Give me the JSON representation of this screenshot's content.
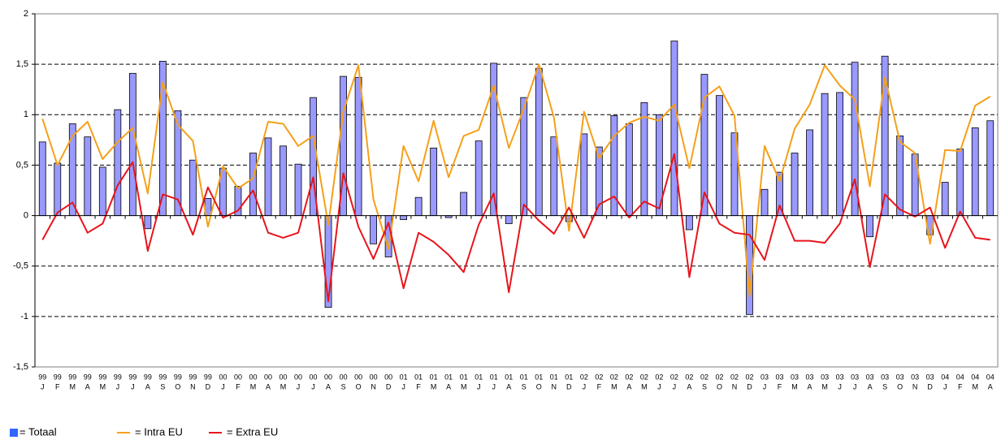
{
  "chart_data": {
    "type": "bar",
    "categories": [
      [
        "99",
        "J"
      ],
      [
        "99",
        "F"
      ],
      [
        "99",
        "M"
      ],
      [
        "99",
        "A"
      ],
      [
        "99",
        "M"
      ],
      [
        "99",
        "J"
      ],
      [
        "99",
        "J"
      ],
      [
        "99",
        "A"
      ],
      [
        "99",
        "S"
      ],
      [
        "99",
        "O"
      ],
      [
        "99",
        "N"
      ],
      [
        "99",
        "D"
      ],
      [
        "00",
        "J"
      ],
      [
        "00",
        "F"
      ],
      [
        "00",
        "M"
      ],
      [
        "00",
        "A"
      ],
      [
        "00",
        "M"
      ],
      [
        "00",
        "J"
      ],
      [
        "00",
        "J"
      ],
      [
        "00",
        "A"
      ],
      [
        "00",
        "S"
      ],
      [
        "00",
        "O"
      ],
      [
        "00",
        "N"
      ],
      [
        "00",
        "D"
      ],
      [
        "01",
        "J"
      ],
      [
        "01",
        "F"
      ],
      [
        "01",
        "M"
      ],
      [
        "01",
        "A"
      ],
      [
        "01",
        "M"
      ],
      [
        "01",
        "J"
      ],
      [
        "01",
        "J"
      ],
      [
        "01",
        "A"
      ],
      [
        "01",
        "S"
      ],
      [
        "01",
        "O"
      ],
      [
        "01",
        "N"
      ],
      [
        "01",
        "D"
      ],
      [
        "02",
        "J"
      ],
      [
        "02",
        "F"
      ],
      [
        "02",
        "M"
      ],
      [
        "02",
        "A"
      ],
      [
        "02",
        "M"
      ],
      [
        "02",
        "J"
      ],
      [
        "02",
        "J"
      ],
      [
        "02",
        "A"
      ],
      [
        "02",
        "S"
      ],
      [
        "02",
        "O"
      ],
      [
        "02",
        "N"
      ],
      [
        "02",
        "D"
      ],
      [
        "03",
        "J"
      ],
      [
        "03",
        "F"
      ],
      [
        "03",
        "M"
      ],
      [
        "03",
        "A"
      ],
      [
        "03",
        "M"
      ],
      [
        "03",
        "J"
      ],
      [
        "03",
        "J"
      ],
      [
        "03",
        "A"
      ],
      [
        "03",
        "S"
      ],
      [
        "03",
        "O"
      ],
      [
        "03",
        "N"
      ],
      [
        "03",
        "D"
      ],
      [
        "04",
        "J"
      ],
      [
        "04",
        "F"
      ],
      [
        "04",
        "M"
      ],
      [
        "04",
        "A"
      ]
    ],
    "series": [
      {
        "name": "= Totaal",
        "type": "bar",
        "color": "#9999ff",
        "legend_color": "#3366ff",
        "values": [
          0.73,
          0.52,
          0.91,
          0.78,
          0.48,
          1.05,
          1.41,
          -0.13,
          1.53,
          1.04,
          0.55,
          0.17,
          0.47,
          0.29,
          0.62,
          0.77,
          0.69,
          0.51,
          1.17,
          -0.91,
          1.38,
          1.37,
          -0.28,
          -0.41,
          -0.04,
          0.18,
          0.67,
          -0.02,
          0.23,
          0.74,
          1.51,
          -0.08,
          1.17,
          1.46,
          0.78,
          -0.06,
          0.81,
          0.68,
          0.99,
          0.91,
          1.12,
          1.0,
          1.73,
          -0.14,
          1.4,
          1.19,
          0.82,
          -0.98,
          0.26,
          0.43,
          0.62,
          0.85,
          1.21,
          1.22,
          1.52,
          -0.21,
          1.58,
          0.79,
          0.61,
          -0.19,
          0.33,
          0.66,
          0.87,
          0.94
        ]
      },
      {
        "name": "= Intra EU",
        "type": "line",
        "color": "#f5a01a",
        "values": [
          0.96,
          0.5,
          0.79,
          0.93,
          0.56,
          0.73,
          0.87,
          0.22,
          1.32,
          0.9,
          0.74,
          -0.11,
          0.49,
          0.27,
          0.37,
          0.93,
          0.91,
          0.69,
          0.79,
          -0.09,
          1.03,
          1.49,
          0.16,
          -0.33,
          0.69,
          0.34,
          0.94,
          0.38,
          0.79,
          0.85,
          1.29,
          0.67,
          1.06,
          1.5,
          0.97,
          -0.15,
          1.03,
          0.57,
          0.79,
          0.92,
          0.98,
          0.94,
          1.1,
          0.47,
          1.17,
          1.28,
          0.99,
          -0.8,
          0.69,
          0.34,
          0.86,
          1.1,
          1.49,
          1.29,
          1.15,
          0.29,
          1.37,
          0.73,
          0.62,
          -0.28,
          0.65,
          0.64,
          1.09,
          1.18
        ]
      },
      {
        "name": "= Extra EU",
        "type": "line",
        "color": "#e8141c",
        "values": [
          -0.24,
          0.03,
          0.13,
          -0.17,
          -0.08,
          0.3,
          0.53,
          -0.35,
          0.21,
          0.16,
          -0.19,
          0.28,
          -0.02,
          0.05,
          0.25,
          -0.17,
          -0.22,
          -0.17,
          0.38,
          -0.85,
          0.42,
          -0.11,
          -0.43,
          -0.07,
          -0.72,
          -0.17,
          -0.26,
          -0.39,
          -0.56,
          -0.09,
          0.22,
          -0.76,
          0.11,
          -0.05,
          -0.18,
          0.08,
          -0.22,
          0.11,
          0.19,
          -0.02,
          0.14,
          0.07,
          0.61,
          -0.61,
          0.23,
          -0.08,
          -0.17,
          -0.19,
          -0.44,
          0.1,
          -0.25,
          -0.25,
          -0.27,
          -0.08,
          0.36,
          -0.51,
          0.21,
          0.06,
          -0.01,
          0.08,
          -0.32,
          0.04,
          -0.22,
          -0.24
        ]
      }
    ],
    "ylim": [
      -1.5,
      2
    ],
    "yticks": [
      {
        "value": -1.5,
        "label": "-1,5"
      },
      -1,
      {
        "value": -0.5,
        "label": "-0,5"
      },
      0,
      {
        "value": 0.5,
        "label": "0,5"
      },
      1,
      {
        "value": 1.5,
        "label": "1,5"
      },
      2
    ],
    "grid": true,
    "legend": "bottom-left"
  }
}
